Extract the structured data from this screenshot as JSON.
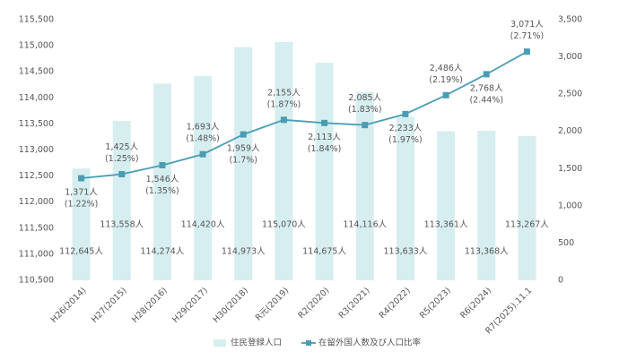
{
  "chart_data": {
    "type": "bar-line",
    "categories": [
      "H26(2014)",
      "H27(2015)",
      "H28(2016)",
      "H29(2017)",
      "H30(2018)",
      "R元(2019)",
      "R2(2020)",
      "R3(2021)",
      "R4(2022)",
      "R5(2023)",
      "R6(2024)",
      "R7(2025).11.1"
    ],
    "series": [
      {
        "name": "住民登録人口",
        "type": "bar",
        "color": "#d7eef0",
        "values": [
          112645,
          113558,
          114274,
          114420,
          114973,
          115070,
          114675,
          114116,
          113633,
          113361,
          113368,
          113267
        ],
        "value_labels": [
          "112,645人",
          "113,558人",
          "114,274人",
          "114,420人",
          "114,973人",
          "115,070人",
          "114,675人",
          "114,116人",
          "113,633人",
          "113,361人",
          "113,368人",
          "113,267人"
        ]
      },
      {
        "name": "在留外国人数及び人口比率",
        "type": "line",
        "axis": "y2",
        "color": "#4a9db3",
        "values": [
          1371,
          1425,
          1546,
          1693,
          1959,
          2155,
          2113,
          2085,
          2233,
          2486,
          2768,
          3071
        ],
        "value_labels": [
          "1,371人",
          "1,425人",
          "1,546人",
          "1,693人",
          "1,959人",
          "2,155人",
          "2,113人",
          "2,085人",
          "2,233人",
          "2,486人",
          "2,768人",
          "3,071人"
        ],
        "ratio_labels": [
          "(1.22%)",
          "(1.25%)",
          "(1.35%)",
          "(1.48%)",
          "(1.7%)",
          "(1.87%)",
          "(1.84%)",
          "(1.83%)",
          "(1.97%)",
          "(2.19%)",
          "(2.44%)",
          "(2.71%)"
        ]
      }
    ],
    "ylim": [
      110500,
      115500
    ],
    "yticks": [
      {
        "value": 110500,
        "label": "110,500"
      },
      {
        "value": 111000,
        "label": "111,000"
      },
      {
        "value": 111500,
        "label": "111,500"
      },
      {
        "value": 112000,
        "label": "112,000"
      },
      {
        "value": 112500,
        "label": "112,500"
      },
      {
        "value": 113000,
        "label": "113,000"
      },
      {
        "value": 113500,
        "label": "113,500"
      },
      {
        "value": 114000,
        "label": "114,000"
      },
      {
        "value": 114500,
        "label": "114,500"
      },
      {
        "value": 115000,
        "label": "115,000"
      },
      {
        "value": 115500,
        "label": "115,500"
      }
    ],
    "y2lim": [
      0,
      3500
    ],
    "y2ticks": [
      0,
      500,
      {
        "value": 1000,
        "label": "1,000"
      },
      {
        "value": 1500,
        "label": "1,500"
      },
      {
        "value": 2000,
        "label": "2,000"
      },
      {
        "value": 2500,
        "label": "2,500"
      },
      {
        "value": 3000,
        "label": "3,000"
      },
      {
        "value": 3500,
        "label": "3,500"
      }
    ],
    "grid": false
  }
}
